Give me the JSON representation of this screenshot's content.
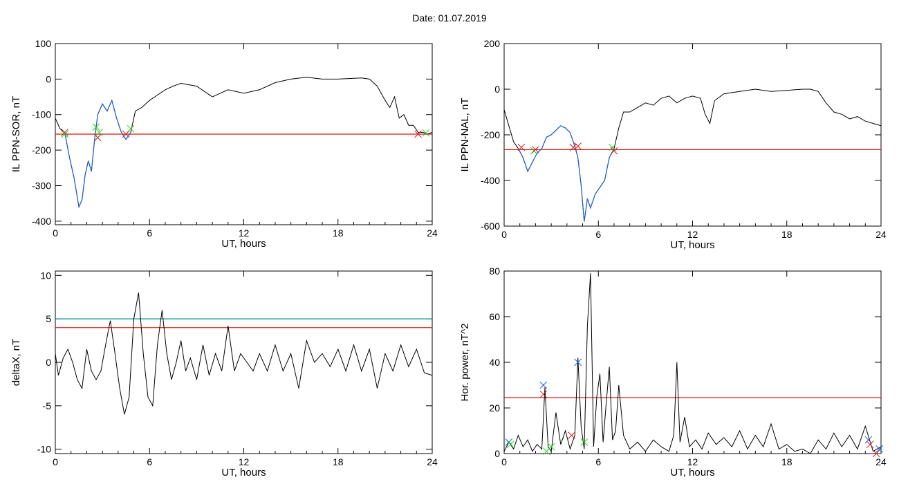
{
  "title": "Date:  01.07.2019",
  "colors": {
    "trace": "#000000",
    "filtered": "#1f5fd1",
    "threshold": "#e01010",
    "upper_threshold": "#008a8a",
    "marker_green": "#20d020",
    "marker_red": "#d02020",
    "marker_blue": "#2060e0"
  },
  "chart_data": [
    {
      "type": "line",
      "id": "ppn-sor",
      "xlabel": "UT, hours",
      "ylabel": "IL PPN-SOR, nT",
      "xlim": [
        0,
        24
      ],
      "ylim": [
        -410,
        100
      ],
      "xticks": [
        0,
        6,
        12,
        18,
        24
      ],
      "yticks": [
        -400,
        -300,
        -200,
        -100,
        0,
        100
      ],
      "series": [
        {
          "x": [
            0,
            0.3,
            0.6,
            0.9,
            1.2,
            1.5,
            1.7,
            1.9,
            2.1,
            2.3,
            2.5,
            2.7,
            3.0,
            3.3,
            3.6,
            3.9,
            4.2,
            4.5,
            4.8,
            5.1,
            5.5,
            6.0,
            6.5,
            7.0,
            7.5,
            8.0,
            9.0,
            10.0,
            11.0,
            12.0,
            13.0,
            14.0,
            15.0,
            16.0,
            17.0,
            18.0,
            19.0,
            19.5,
            20.0,
            20.5,
            21.0,
            21.3,
            21.6,
            21.9,
            22.2,
            22.5,
            22.8,
            23.1,
            23.4,
            23.7,
            24.0
          ],
          "y": [
            -110,
            -140,
            -150,
            -220,
            -280,
            -360,
            -340,
            -270,
            -230,
            -260,
            -170,
            -100,
            -70,
            -90,
            -60,
            -110,
            -150,
            -170,
            -150,
            -90,
            -80,
            -60,
            -45,
            -30,
            -20,
            -12,
            -20,
            -50,
            -30,
            -40,
            -30,
            -10,
            0,
            5,
            0,
            0,
            2,
            3,
            0,
            -20,
            -60,
            -80,
            -50,
            -110,
            -100,
            -130,
            -130,
            -150,
            -150,
            -155,
            -150
          ]
        }
      ],
      "filtered_span": [
        0.5,
        4.8
      ],
      "threshold": -155,
      "markers": [
        {
          "x": 0.6,
          "y": -150,
          "color": "red"
        },
        {
          "x": 0.6,
          "y": -155,
          "color": "green"
        },
        {
          "x": 2.6,
          "y": -135,
          "color": "green"
        },
        {
          "x": 2.7,
          "y": -165,
          "color": "red"
        },
        {
          "x": 2.8,
          "y": -150,
          "color": "green"
        },
        {
          "x": 4.5,
          "y": -155,
          "color": "red"
        },
        {
          "x": 4.8,
          "y": -140,
          "color": "green"
        },
        {
          "x": 23.1,
          "y": -155,
          "color": "red"
        },
        {
          "x": 23.6,
          "y": -152,
          "color": "green"
        }
      ]
    },
    {
      "type": "line",
      "id": "ppn-nal",
      "xlabel": "UT, hours",
      "ylabel": "IL PPN-NAL, nT",
      "xlim": [
        0,
        24
      ],
      "ylim": [
        -600,
        200
      ],
      "xticks": [
        0,
        6,
        12,
        18,
        24
      ],
      "yticks": [
        -600,
        -400,
        -200,
        0,
        200
      ],
      "series": [
        {
          "x": [
            0,
            0.3,
            0.6,
            0.9,
            1.2,
            1.5,
            1.8,
            2.1,
            2.4,
            2.7,
            3.0,
            3.3,
            3.6,
            3.9,
            4.2,
            4.5,
            4.7,
            4.9,
            5.1,
            5.3,
            5.5,
            5.8,
            6.1,
            6.4,
            6.7,
            7.0,
            7.3,
            7.6,
            8.0,
            8.5,
            9.0,
            9.5,
            10.0,
            10.5,
            11.0,
            11.5,
            12.0,
            12.5,
            12.8,
            13.1,
            13.4,
            14.0,
            15.0,
            16.0,
            17.0,
            18.0,
            19.0,
            19.5,
            20.0,
            20.5,
            21.0,
            21.5,
            22.0,
            22.5,
            23.0,
            23.5,
            24.0
          ],
          "y": [
            -90,
            -160,
            -230,
            -260,
            -300,
            -360,
            -320,
            -280,
            -260,
            -210,
            -200,
            -180,
            -160,
            -170,
            -190,
            -250,
            -300,
            -420,
            -580,
            -480,
            -520,
            -460,
            -430,
            -400,
            -300,
            -260,
            -170,
            -100,
            -100,
            -80,
            -60,
            -70,
            -40,
            -30,
            -60,
            -40,
            -30,
            -40,
            -110,
            -150,
            -50,
            -20,
            -10,
            0,
            -10,
            -5,
            0,
            0,
            -10,
            -60,
            -100,
            -110,
            -130,
            -120,
            -140,
            -150,
            -160
          ]
        }
      ],
      "filtered_span": [
        0.9,
        7.0
      ],
      "threshold": -265,
      "markers": [
        {
          "x": 1.1,
          "y": -255,
          "color": "red"
        },
        {
          "x": 1.9,
          "y": -270,
          "color": "green"
        },
        {
          "x": 2.0,
          "y": -265,
          "color": "red"
        },
        {
          "x": 4.4,
          "y": -255,
          "color": "red"
        },
        {
          "x": 4.7,
          "y": -250,
          "color": "red"
        },
        {
          "x": 6.9,
          "y": -255,
          "color": "green"
        },
        {
          "x": 7.0,
          "y": -270,
          "color": "red"
        }
      ]
    },
    {
      "type": "line",
      "id": "deltax",
      "xlabel": "UT, hours",
      "ylabel": "deltaX, nT",
      "xlim": [
        0,
        24
      ],
      "ylim": [
        -10.5,
        10.5
      ],
      "xticks": [
        0,
        6,
        12,
        18,
        24
      ],
      "yticks": [
        -10,
        -5,
        0,
        5,
        10
      ],
      "series": [
        {
          "x": [
            0,
            0.2,
            0.5,
            0.8,
            1.1,
            1.4,
            1.7,
            2.0,
            2.3,
            2.6,
            2.9,
            3.2,
            3.5,
            3.8,
            4.1,
            4.4,
            4.7,
            5.0,
            5.3,
            5.6,
            5.9,
            6.2,
            6.5,
            6.8,
            7.1,
            7.4,
            7.7,
            8.0,
            8.3,
            8.6,
            9.0,
            9.4,
            9.8,
            10.2,
            10.6,
            11.0,
            11.4,
            11.8,
            12.2,
            12.6,
            13.0,
            13.5,
            14.0,
            14.5,
            15.0,
            15.5,
            16.0,
            16.5,
            17.0,
            17.5,
            18.0,
            18.5,
            19.0,
            19.5,
            20.0,
            20.5,
            21.0,
            21.5,
            22.0,
            22.5,
            23.0,
            23.5,
            24.0
          ],
          "y": [
            1,
            -1.5,
            0.5,
            1.5,
            0,
            -2,
            -3,
            1.5,
            -1,
            -2,
            -1,
            2,
            4.8,
            1,
            -3,
            -6,
            -4,
            5,
            8,
            1,
            -4,
            -5,
            2,
            6,
            1,
            -2,
            0,
            2.5,
            -1,
            0.5,
            -2,
            2,
            -1.5,
            1,
            -1,
            4.2,
            -1,
            1,
            0,
            -1,
            1,
            -1,
            2,
            -1,
            1,
            -3,
            2.5,
            0,
            1,
            -0.5,
            1.5,
            -1,
            2,
            -1,
            1.5,
            -3,
            1,
            -1,
            2,
            -0.5,
            1.5,
            -1.2,
            -1.5
          ]
        }
      ],
      "threshold": 4.0,
      "upper_threshold": 5.0
    },
    {
      "type": "line",
      "id": "hor-power",
      "xlabel": "UT, hours",
      "ylabel": "Hor. power, nT^2",
      "xlim": [
        0,
        24
      ],
      "ylim": [
        0,
        80
      ],
      "xticks": [
        0,
        6,
        12,
        18,
        24
      ],
      "yticks": [
        0,
        20,
        40,
        60,
        80
      ],
      "series": [
        {
          "x": [
            0,
            0.3,
            0.6,
            0.9,
            1.2,
            1.5,
            1.8,
            2.1,
            2.4,
            2.6,
            2.8,
            3.0,
            3.3,
            3.6,
            3.9,
            4.2,
            4.5,
            4.7,
            4.9,
            5.1,
            5.3,
            5.5,
            5.7,
            5.9,
            6.1,
            6.3,
            6.5,
            6.7,
            6.9,
            7.1,
            7.3,
            7.6,
            8.0,
            8.5,
            9.0,
            9.5,
            10.0,
            10.5,
            10.8,
            11.0,
            11.2,
            11.5,
            11.8,
            12.2,
            12.6,
            13.0,
            13.5,
            14.0,
            14.5,
            15.0,
            15.5,
            16.0,
            16.5,
            17.0,
            17.5,
            18.0,
            18.5,
            19.0,
            19.5,
            20.0,
            20.5,
            21.0,
            21.5,
            22.0,
            22.5,
            23.0,
            23.5,
            24.0
          ],
          "y": [
            1,
            5,
            2,
            8,
            3,
            6,
            1,
            4,
            2,
            29,
            3,
            1,
            18,
            4,
            10,
            2,
            8,
            42,
            12,
            2,
            56,
            79,
            3,
            25,
            35,
            5,
            22,
            38,
            6,
            10,
            30,
            8,
            2,
            5,
            1,
            6,
            3,
            1,
            8,
            40,
            5,
            16,
            3,
            6,
            2,
            9,
            4,
            7,
            3,
            10,
            2,
            8,
            3,
            13,
            2,
            4,
            1,
            2,
            0,
            6,
            2,
            9,
            3,
            8,
            2,
            12,
            1,
            3
          ]
        }
      ],
      "threshold": 24.5,
      "markers": [
        {
          "x": 0.3,
          "y": 5,
          "color": "blue"
        },
        {
          "x": 0.4,
          "y": 4,
          "color": "green"
        },
        {
          "x": 2.5,
          "y": 30,
          "color": "blue"
        },
        {
          "x": 2.5,
          "y": 26,
          "color": "red"
        },
        {
          "x": 2.7,
          "y": 1,
          "color": "green"
        },
        {
          "x": 3.0,
          "y": 3,
          "color": "green"
        },
        {
          "x": 4.3,
          "y": 8,
          "color": "red"
        },
        {
          "x": 4.7,
          "y": 40,
          "color": "blue"
        },
        {
          "x": 5.1,
          "y": 5,
          "color": "green"
        },
        {
          "x": 23.2,
          "y": 6,
          "color": "blue"
        },
        {
          "x": 23.3,
          "y": 4,
          "color": "red"
        },
        {
          "x": 23.7,
          "y": 0,
          "color": "red"
        },
        {
          "x": 23.9,
          "y": 2,
          "color": "blue"
        }
      ]
    }
  ]
}
